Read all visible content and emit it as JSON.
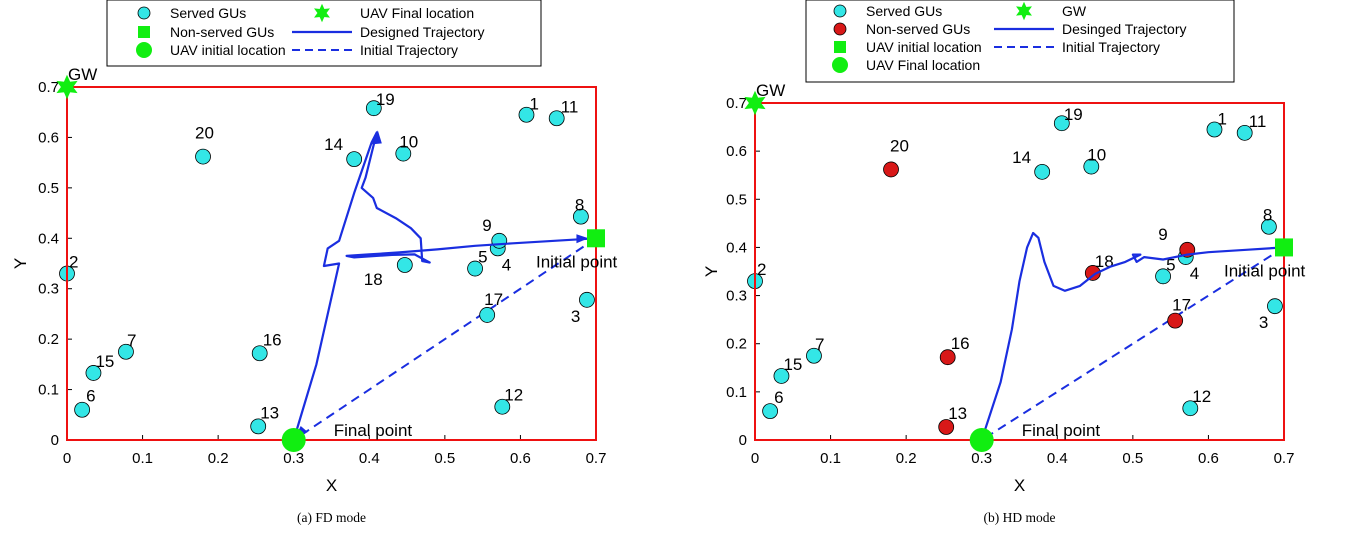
{
  "colors": {
    "served": "#33e6e6",
    "nonserved": "#d81818",
    "green": "#11ee11",
    "trajectory": "#1a2ee0",
    "frame": "#ee1111"
  },
  "chart_data": [
    {
      "type": "scatter",
      "title": "",
      "xlabel": "X",
      "ylabel": "Y",
      "xlim": [
        0,
        0.7
      ],
      "ylim": [
        0,
        0.7
      ],
      "xticks": [
        "0",
        "0.1",
        "0.2",
        "0.3",
        "0.4",
        "0.5",
        "0.6",
        "0.7"
      ],
      "yticks": [
        "0",
        "0.1",
        "0.2",
        "0.3",
        "0.4",
        "0.5",
        "0.6",
        "0.7"
      ],
      "caption": "(a) FD mode",
      "legend": {
        "placement": "top",
        "entries": [
          "Served GUs",
          "Non-served GUs",
          "UAV initial location",
          "UAV Final location",
          "Designed Trajectory",
          "Initial Trajectory"
        ]
      },
      "gw": {
        "x": 0,
        "y": 0.7,
        "label": "GW"
      },
      "initial_point": {
        "x": 0.7,
        "y": 0.4,
        "label": "Initial point"
      },
      "final_point": {
        "x": 0.3,
        "y": 0.0,
        "label": "Final point"
      },
      "gus": [
        {
          "id": "1",
          "x": 0.608,
          "y": 0.645,
          "served": true
        },
        {
          "id": "2",
          "x": 0.0,
          "y": 0.33,
          "served": true
        },
        {
          "id": "3",
          "x": 0.688,
          "y": 0.278,
          "served": true
        },
        {
          "id": "4",
          "x": 0.57,
          "y": 0.38,
          "served": true
        },
        {
          "id": "5",
          "x": 0.54,
          "y": 0.34,
          "served": true
        },
        {
          "id": "6",
          "x": 0.02,
          "y": 0.06,
          "served": true
        },
        {
          "id": "7",
          "x": 0.078,
          "y": 0.175,
          "served": true
        },
        {
          "id": "8",
          "x": 0.68,
          "y": 0.443,
          "served": true
        },
        {
          "id": "9",
          "x": 0.572,
          "y": 0.395,
          "served": true
        },
        {
          "id": "10",
          "x": 0.445,
          "y": 0.568,
          "served": true
        },
        {
          "id": "11",
          "x": 0.648,
          "y": 0.638,
          "served": true
        },
        {
          "id": "12",
          "x": 0.576,
          "y": 0.066,
          "served": true
        },
        {
          "id": "13",
          "x": 0.253,
          "y": 0.027,
          "served": true
        },
        {
          "id": "14",
          "x": 0.38,
          "y": 0.557,
          "served": true
        },
        {
          "id": "15",
          "x": 0.035,
          "y": 0.133,
          "served": true
        },
        {
          "id": "16",
          "x": 0.255,
          "y": 0.172,
          "served": true
        },
        {
          "id": "17",
          "x": 0.556,
          "y": 0.248,
          "served": true
        },
        {
          "id": "18",
          "x": 0.447,
          "y": 0.347,
          "served": true
        },
        {
          "id": "19",
          "x": 0.406,
          "y": 0.658,
          "served": true
        },
        {
          "id": "20",
          "x": 0.18,
          "y": 0.562,
          "served": true
        }
      ],
      "designed_trajectory": [
        [
          0.7,
          0.4
        ],
        [
          0.645,
          0.395
        ],
        [
          0.59,
          0.39
        ],
        [
          0.54,
          0.385
        ],
        [
          0.49,
          0.378
        ],
        [
          0.44,
          0.372
        ],
        [
          0.4,
          0.368
        ],
        [
          0.37,
          0.365
        ],
        [
          0.38,
          0.362
        ],
        [
          0.43,
          0.367
        ],
        [
          0.46,
          0.368
        ],
        [
          0.47,
          0.36
        ],
        [
          0.48,
          0.352
        ],
        [
          0.47,
          0.355
        ],
        [
          0.468,
          0.4
        ],
        [
          0.455,
          0.42
        ],
        [
          0.435,
          0.44
        ],
        [
          0.41,
          0.46
        ],
        [
          0.405,
          0.48
        ],
        [
          0.39,
          0.5
        ],
        [
          0.395,
          0.52
        ],
        [
          0.41,
          0.61
        ],
        [
          0.403,
          0.59
        ],
        [
          0.38,
          0.49
        ],
        [
          0.36,
          0.395
        ],
        [
          0.345,
          0.38
        ],
        [
          0.34,
          0.345
        ],
        [
          0.36,
          0.35
        ],
        [
          0.33,
          0.15
        ],
        [
          0.3,
          0.0
        ]
      ],
      "initial_trajectory": [
        [
          0.7,
          0.4
        ],
        [
          0.3,
          0.0
        ]
      ]
    },
    {
      "type": "scatter",
      "title": "",
      "xlabel": "X",
      "ylabel": "Y",
      "xlim": [
        0,
        0.7
      ],
      "ylim": [
        0,
        0.7
      ],
      "xticks": [
        "0",
        "0.1",
        "0.2",
        "0.3",
        "0.4",
        "0.5",
        "0.6",
        "0.7"
      ],
      "yticks": [
        "0",
        "0.1",
        "0.2",
        "0.3",
        "0.4",
        "0.5",
        "0.6",
        "0.7"
      ],
      "caption": "(b) HD mode",
      "legend": {
        "placement": "top",
        "entries": [
          "Served GUs",
          "Non-served GUs",
          "UAV initial location",
          "UAV Final location",
          "GW",
          "Desinged Trajectory",
          "Initial Trajectory"
        ]
      },
      "gw": {
        "x": 0,
        "y": 0.7,
        "label": "GW"
      },
      "initial_point": {
        "x": 0.7,
        "y": 0.4,
        "label": "Initial point"
      },
      "final_point": {
        "x": 0.3,
        "y": 0.0,
        "label": "Final point"
      },
      "gus": [
        {
          "id": "1",
          "x": 0.608,
          "y": 0.645,
          "served": true
        },
        {
          "id": "2",
          "x": 0.0,
          "y": 0.33,
          "served": true
        },
        {
          "id": "3",
          "x": 0.688,
          "y": 0.278,
          "served": true
        },
        {
          "id": "4",
          "x": 0.57,
          "y": 0.38,
          "served": true
        },
        {
          "id": "5",
          "x": 0.54,
          "y": 0.34,
          "served": true
        },
        {
          "id": "6",
          "x": 0.02,
          "y": 0.06,
          "served": true
        },
        {
          "id": "7",
          "x": 0.078,
          "y": 0.175,
          "served": true
        },
        {
          "id": "8",
          "x": 0.68,
          "y": 0.443,
          "served": true
        },
        {
          "id": "9",
          "x": 0.572,
          "y": 0.395,
          "served": false
        },
        {
          "id": "10",
          "x": 0.445,
          "y": 0.568,
          "served": true
        },
        {
          "id": "11",
          "x": 0.648,
          "y": 0.638,
          "served": true
        },
        {
          "id": "12",
          "x": 0.576,
          "y": 0.066,
          "served": true
        },
        {
          "id": "13",
          "x": 0.253,
          "y": 0.027,
          "served": false
        },
        {
          "id": "14",
          "x": 0.38,
          "y": 0.557,
          "served": true
        },
        {
          "id": "15",
          "x": 0.035,
          "y": 0.133,
          "served": true
        },
        {
          "id": "16",
          "x": 0.255,
          "y": 0.172,
          "served": false
        },
        {
          "id": "17",
          "x": 0.556,
          "y": 0.248,
          "served": false
        },
        {
          "id": "18",
          "x": 0.447,
          "y": 0.347,
          "served": false
        },
        {
          "id": "19",
          "x": 0.406,
          "y": 0.658,
          "served": true
        },
        {
          "id": "20",
          "x": 0.18,
          "y": 0.562,
          "served": false
        }
      ],
      "designed_trajectory": [
        [
          0.7,
          0.4
        ],
        [
          0.65,
          0.395
        ],
        [
          0.6,
          0.39
        ],
        [
          0.572,
          0.385
        ],
        [
          0.54,
          0.375
        ],
        [
          0.515,
          0.38
        ],
        [
          0.505,
          0.37
        ],
        [
          0.5,
          0.385
        ],
        [
          0.51,
          0.385
        ],
        [
          0.49,
          0.37
        ],
        [
          0.47,
          0.36
        ],
        [
          0.45,
          0.345
        ],
        [
          0.43,
          0.32
        ],
        [
          0.41,
          0.31
        ],
        [
          0.395,
          0.32
        ],
        [
          0.383,
          0.37
        ],
        [
          0.375,
          0.42
        ],
        [
          0.368,
          0.43
        ],
        [
          0.36,
          0.4
        ],
        [
          0.35,
          0.33
        ],
        [
          0.34,
          0.23
        ],
        [
          0.325,
          0.12
        ],
        [
          0.3,
          0.0
        ]
      ],
      "initial_trajectory": [
        [
          0.7,
          0.4
        ],
        [
          0.3,
          0.0
        ]
      ]
    }
  ]
}
